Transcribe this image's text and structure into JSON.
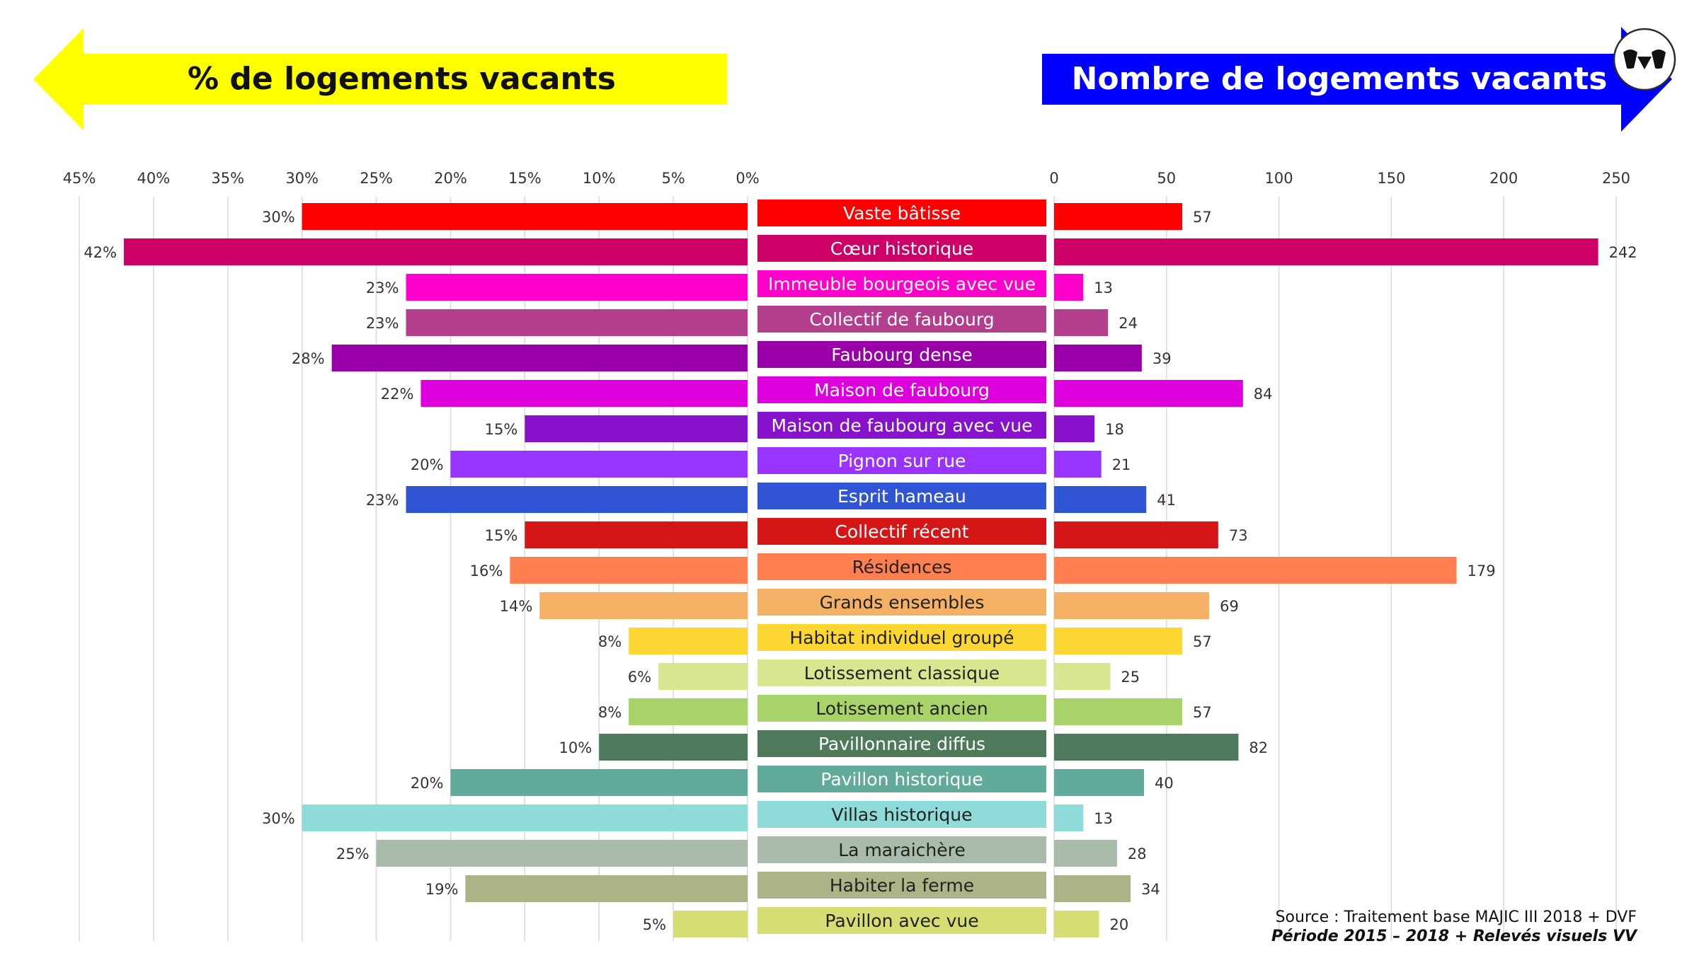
{
  "header": {
    "left_title": "% de logements vacants",
    "right_title": "Nombre de logements vacants",
    "left_color": "#ffff00",
    "right_color": "#0000ff",
    "logo_icon": "vv-logo-icon"
  },
  "source": {
    "line1": "Source : Traitement base MAJIC III 2018 + DVF",
    "line2": "Période 2015 – 2018 + Relevés visuels VV"
  },
  "chart_data": {
    "type": "bar",
    "orientation": "horizontal-butterfly",
    "grid": true,
    "left": {
      "ticks": [
        "45%",
        "40%",
        "35%",
        "30%",
        "25%",
        "20%",
        "15%",
        "10%",
        "5%",
        "0%"
      ],
      "range": [
        0,
        45
      ],
      "unit": "%"
    },
    "right": {
      "ticks": [
        "0",
        "50",
        "100",
        "150",
        "200",
        "250"
      ],
      "range": [
        0,
        250
      ]
    },
    "categories": [
      {
        "label": "Vaste bâtisse",
        "pct": 30,
        "pct_label": "30%",
        "count": 57,
        "color": "#ff0000",
        "text_color": "#ffffff"
      },
      {
        "label": "Cœur historique",
        "pct": 42,
        "pct_label": "42%",
        "count": 242,
        "color": "#cc0066",
        "text_color": "#ffffff"
      },
      {
        "label": "Immeuble bourgeois avec vue",
        "pct": 23,
        "pct_label": "23%",
        "count": 13,
        "color": "#ff00cc",
        "text_color": "#ffffff"
      },
      {
        "label": "Collectif de faubourg",
        "pct": 23,
        "pct_label": "23%",
        "count": 24,
        "color": "#b33e8e",
        "text_color": "#ffffff"
      },
      {
        "label": "Faubourg dense",
        "pct": 28,
        "pct_label": "28%",
        "count": 39,
        "color": "#9900aa",
        "text_color": "#ffffff"
      },
      {
        "label": "Maison de faubourg",
        "pct": 22,
        "pct_label": "22%",
        "count": 84,
        "color": "#dd00dd",
        "text_color": "#ffffff"
      },
      {
        "label": "Maison de faubourg avec vue",
        "pct": 15,
        "pct_label": "15%",
        "count": 18,
        "color": "#8811cc",
        "text_color": "#ffffff"
      },
      {
        "label": "Pignon sur rue",
        "pct": 20,
        "pct_label": "20%",
        "count": 21,
        "color": "#9933ff",
        "text_color": "#ffffff"
      },
      {
        "label": "Esprit hameau",
        "pct": 23,
        "pct_label": "23%",
        "count": 41,
        "color": "#2f55d4",
        "text_color": "#ffffff"
      },
      {
        "label": "Collectif récent",
        "pct": 15,
        "pct_label": "15%",
        "count": 73,
        "color": "#d41616",
        "text_color": "#ffffff"
      },
      {
        "label": "Résidences",
        "pct": 16,
        "pct_label": "16%",
        "count": 179,
        "color": "#ff7f50",
        "text_color": "#222222"
      },
      {
        "label": "Grands ensembles",
        "pct": 14,
        "pct_label": "14%",
        "count": 69,
        "color": "#f4b064",
        "text_color": "#222222"
      },
      {
        "label": "Habitat individuel groupé",
        "pct": 8,
        "pct_label": "8%",
        "count": 57,
        "color": "#fcd734",
        "text_color": "#222222"
      },
      {
        "label": "Lotissement classique",
        "pct": 6,
        "pct_label": "6%",
        "count": 25,
        "color": "#d9e690",
        "text_color": "#222222"
      },
      {
        "label": "Lotissement ancien",
        "pct": 8,
        "pct_label": "8%",
        "count": 57,
        "color": "#a8d26a",
        "text_color": "#222222"
      },
      {
        "label": "Pavillonnaire diffus",
        "pct": 10,
        "pct_label": "10%",
        "count": 82,
        "color": "#4e7a5b",
        "text_color": "#ffffff"
      },
      {
        "label": "Pavillon historique",
        "pct": 20,
        "pct_label": "20%",
        "count": 40,
        "color": "#62ab9a",
        "text_color": "#ffffff"
      },
      {
        "label": "Villas historique",
        "pct": 30,
        "pct_label": "30%",
        "count": 13,
        "color": "#8fdbd9",
        "text_color": "#222222"
      },
      {
        "label": "La maraichère",
        "pct": 25,
        "pct_label": "25%",
        "count": 28,
        "color": "#a9bcab",
        "text_color": "#222222"
      },
      {
        "label": "Habiter la ferme",
        "pct": 19,
        "pct_label": "19%",
        "count": 34,
        "color": "#aab486",
        "text_color": "#222222"
      },
      {
        "label": "Pavillon avec vue",
        "pct": 5,
        "pct_label": "5%",
        "count": 20,
        "color": "#d6dd72",
        "text_color": "#222222"
      }
    ]
  }
}
